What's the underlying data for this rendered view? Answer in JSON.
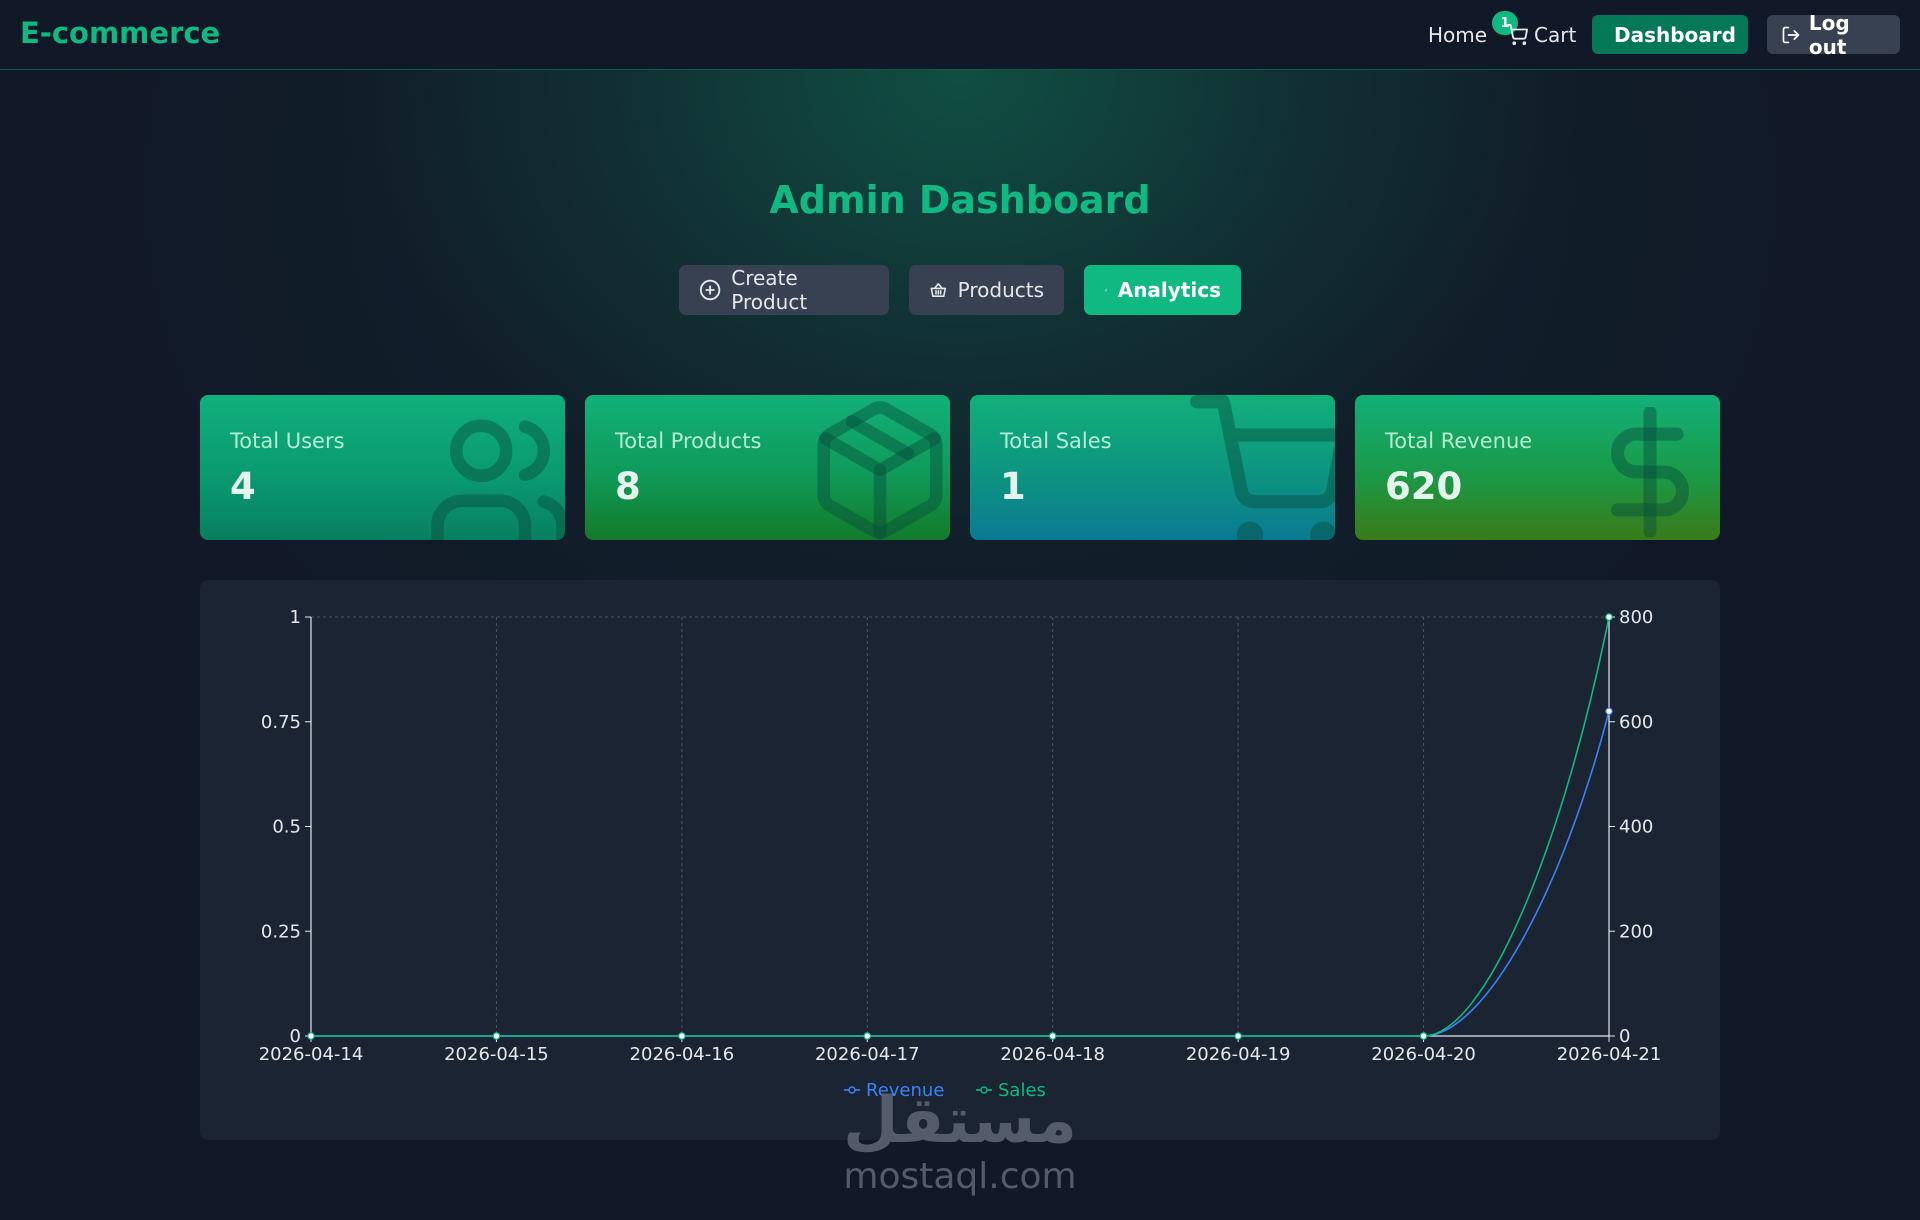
{
  "nav": {
    "brand": "E-commerce",
    "home": "Home",
    "cart": "Cart",
    "cart_count": "1",
    "dashboard": "Dashboard",
    "logout": "Log out"
  },
  "page": {
    "title": "Admin Dashboard",
    "tabs": [
      {
        "label": "Create Product",
        "icon": "plus-circle-icon"
      },
      {
        "label": "Products",
        "icon": "basket-icon"
      },
      {
        "label": "Analytics",
        "icon": "bar-chart-icon",
        "active": true
      }
    ]
  },
  "cards": [
    {
      "label": "Total Users",
      "value": "4",
      "icon": "users-icon"
    },
    {
      "label": "Total Products",
      "value": "8",
      "icon": "package-icon"
    },
    {
      "label": "Total Sales",
      "value": "1",
      "icon": "shopping-cart-icon"
    },
    {
      "label": "Total Revenue",
      "value": "620",
      "icon": "dollar-sign-icon"
    }
  ],
  "colors": {
    "accent": "#10b981",
    "revenue": "#3b82f6",
    "sales": "#10b981"
  },
  "chart_data": {
    "type": "line",
    "x": [
      "2026-04-14",
      "2026-04-15",
      "2026-04-16",
      "2026-04-17",
      "2026-04-18",
      "2026-04-19",
      "2026-04-20",
      "2026-04-21"
    ],
    "series": [
      {
        "name": "Revenue",
        "axis": "right",
        "values": [
          0,
          0,
          0,
          0,
          0,
          0,
          0,
          620
        ]
      },
      {
        "name": "Sales",
        "axis": "left",
        "values": [
          0,
          0,
          0,
          0,
          0,
          0,
          0,
          1
        ]
      }
    ],
    "y_left": {
      "ticks": [
        "0",
        "0.25",
        "0.5",
        "0.75",
        "1"
      ],
      "range": [
        0,
        1
      ]
    },
    "y_right": {
      "ticks": [
        "0",
        "200",
        "400",
        "600",
        "800"
      ],
      "range": [
        0,
        800
      ]
    },
    "grid": true,
    "legend": "bottom"
  },
  "watermark": {
    "arabic": "مستقل",
    "latin": "mostaql.com"
  }
}
